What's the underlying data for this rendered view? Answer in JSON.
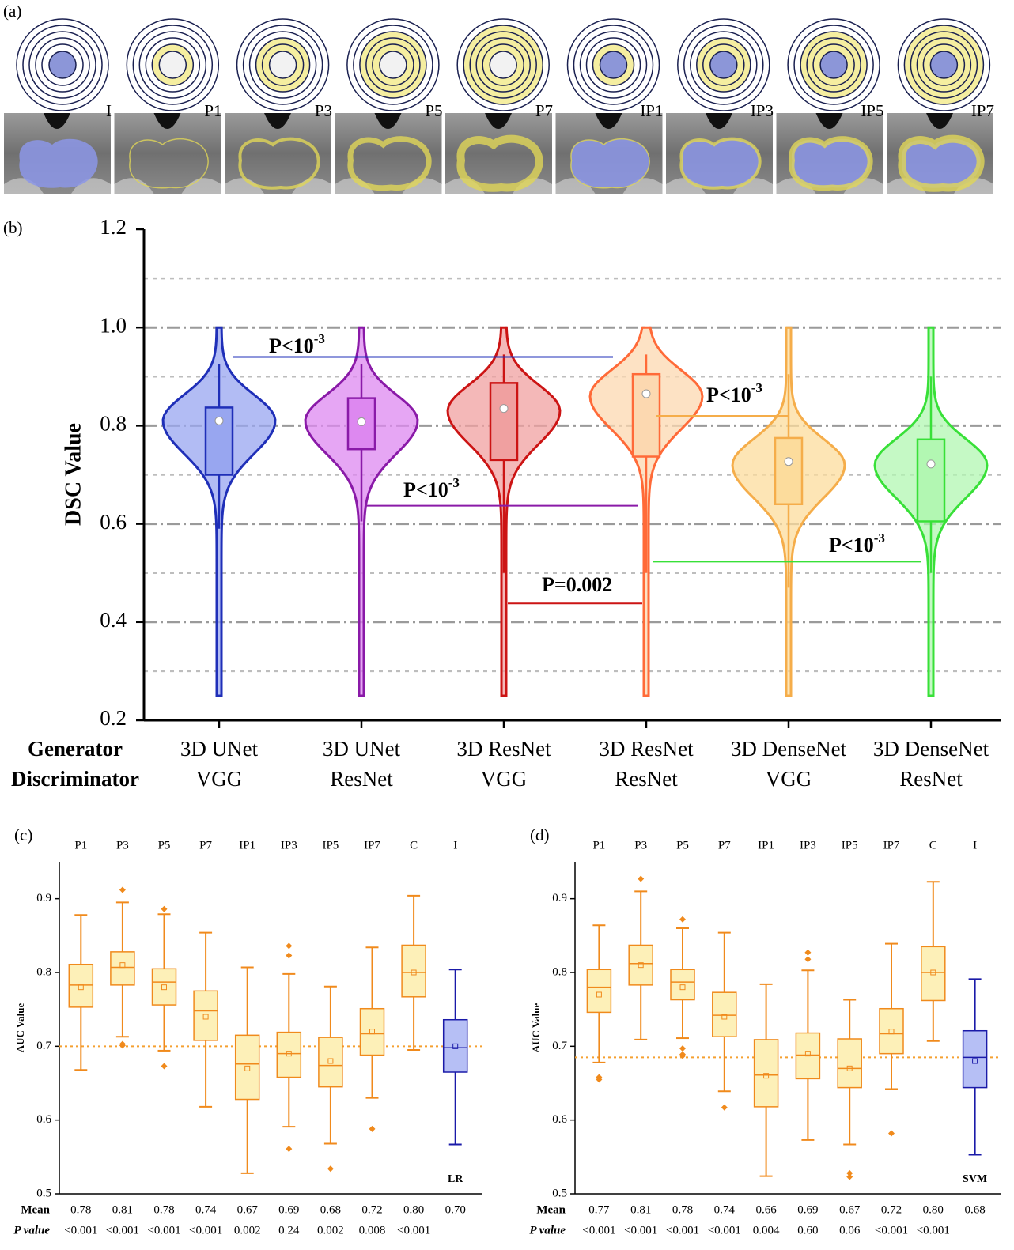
{
  "panel_a": {
    "label": "(a)",
    "items": [
      "I",
      "P1",
      "P3",
      "P5",
      "P7",
      "IP1",
      "IP3",
      "IP5",
      "IP7"
    ]
  },
  "chart_data": [
    {
      "type": "violin",
      "panel_label": "(b)",
      "y_label": "DSC Value",
      "row_labels": [
        "Generator",
        "Discriminator"
      ],
      "generators": [
        "3D UNet",
        "3D UNet",
        "3D ResNet",
        "3D ResNet",
        "3D DenseNet",
        "3D DenseNet"
      ],
      "discriminators": [
        "VGG",
        "ResNet",
        "VGG",
        "ResNet",
        "VGG",
        "ResNet"
      ],
      "ylim": [
        0.2,
        1.2
      ],
      "yticks": [
        0.2,
        0.4,
        0.6,
        0.8,
        {
          "value": 1.0,
          "label": "1.0"
        },
        1.2
      ],
      "minor_grid": [
        0.3,
        0.5,
        0.7,
        0.9,
        1.1
      ],
      "violins": [
        {
          "color": "#1f2fb8",
          "fill": "#98a6f0",
          "min": 0.25,
          "max": 1.0,
          "peak": 0.81,
          "whisker_low": 0.59,
          "q1": 0.7,
          "q3": 0.837,
          "whisker_high": 0.925,
          "mean": 0.81
        },
        {
          "color": "#8a1aa8",
          "fill": "#dd88f0",
          "min": 0.25,
          "max": 1.0,
          "peak": 0.81,
          "whisker_low": 0.605,
          "q1": 0.752,
          "q3": 0.856,
          "whisker_high": 0.925,
          "mean": 0.808
        },
        {
          "color": "#cc1414",
          "fill": "#f0a0a0",
          "min": 0.25,
          "max": 1.0,
          "peak": 0.83,
          "whisker_low": 0.5,
          "q1": 0.73,
          "q3": 0.887,
          "whisker_high": 0.945,
          "mean": 0.835
        },
        {
          "color": "#ff6a38",
          "fill": "#fcd8b0",
          "min": 0.25,
          "max": 1.0,
          "peak": 0.86,
          "whisker_low": 0.5,
          "q1": 0.737,
          "q3": 0.905,
          "whisker_high": 0.945,
          "mean": 0.865
        },
        {
          "color": "#f5ad4a",
          "fill": "#fcdc9c",
          "min": 0.25,
          "max": 1.0,
          "peak": 0.72,
          "whisker_low": 0.47,
          "q1": 0.64,
          "q3": 0.775,
          "whisker_high": 0.905,
          "mean": 0.727
        },
        {
          "color": "#38e038",
          "fill": "#b2f7b2",
          "min": 0.25,
          "max": 1.0,
          "peak": 0.72,
          "whisker_low": 0.5,
          "q1": 0.605,
          "q3": 0.772,
          "whisker_high": 0.9,
          "mean": 0.722
        }
      ],
      "annotations": [
        {
          "text": "P<10",
          "sup": "-3",
          "y": 0.94,
          "color": "#1f2fb8"
        },
        {
          "text": "P<10",
          "sup": "-3",
          "y": 0.637,
          "color": "#8a1aa8"
        },
        {
          "text": "P=0.002",
          "y": 0.438,
          "color": "#cc1414"
        },
        {
          "text": "P<10",
          "sup": "-3",
          "y": 0.82,
          "color": "#f5ad4a"
        },
        {
          "text": "P<10",
          "sup": "-3",
          "y": 0.523,
          "color": "#38e038"
        }
      ]
    },
    {
      "type": "box",
      "panel_label": "(c)",
      "y_label": "AUC Value",
      "model": "LR",
      "categories": [
        "P1",
        "P3",
        "P5",
        "P7",
        "IP1",
        "IP3",
        "IP5",
        "IP7",
        "C",
        "I"
      ],
      "ylim": [
        0.5,
        0.95
      ],
      "yticks": [
        0.5,
        0.6,
        0.7,
        0.8,
        0.9
      ],
      "reference": 0.7,
      "boxes": [
        {
          "color": "#f08a1c",
          "fill": "#fdf0b8",
          "whisker_low": 0.668,
          "q1": 0.753,
          "median": 0.783,
          "q3": 0.811,
          "whisker_high": 0.878,
          "outliers": []
        },
        {
          "color": "#f08a1c",
          "fill": "#fdf0b8",
          "whisker_low": 0.713,
          "q1": 0.783,
          "median": 0.807,
          "q3": 0.828,
          "whisker_high": 0.895,
          "outliers": [
            0.912,
            0.703,
            0.701
          ]
        },
        {
          "color": "#f08a1c",
          "fill": "#fdf0b8",
          "whisker_low": 0.694,
          "q1": 0.756,
          "median": 0.787,
          "q3": 0.805,
          "whisker_high": 0.879,
          "outliers": [
            0.886,
            0.673
          ]
        },
        {
          "color": "#f08a1c",
          "fill": "#fdf0b8",
          "whisker_low": 0.618,
          "q1": 0.708,
          "median": 0.748,
          "q3": 0.775,
          "whisker_high": 0.854,
          "outliers": []
        },
        {
          "color": "#f08a1c",
          "fill": "#fdf0b8",
          "whisker_low": 0.528,
          "q1": 0.628,
          "median": 0.676,
          "q3": 0.715,
          "whisker_high": 0.807,
          "outliers": []
        },
        {
          "color": "#f08a1c",
          "fill": "#fdf0b8",
          "whisker_low": 0.591,
          "q1": 0.658,
          "median": 0.69,
          "q3": 0.719,
          "whisker_high": 0.798,
          "outliers": [
            0.836,
            0.823,
            0.561
          ]
        },
        {
          "color": "#f08a1c",
          "fill": "#fdf0b8",
          "whisker_low": 0.568,
          "q1": 0.645,
          "median": 0.674,
          "q3": 0.712,
          "whisker_high": 0.781,
          "outliers": [
            0.534
          ]
        },
        {
          "color": "#f08a1c",
          "fill": "#fdf0b8",
          "whisker_low": 0.63,
          "q1": 0.688,
          "median": 0.717,
          "q3": 0.751,
          "whisker_high": 0.834,
          "outliers": [
            0.588
          ]
        },
        {
          "color": "#f08a1c",
          "fill": "#fdf0b8",
          "whisker_low": 0.695,
          "q1": 0.767,
          "median": 0.8,
          "q3": 0.837,
          "whisker_high": 0.904,
          "outliers": []
        },
        {
          "color": "#1a1aa8",
          "fill": "#b6bff5",
          "whisker_low": 0.567,
          "q1": 0.665,
          "median": 0.698,
          "q3": 0.736,
          "whisker_high": 0.804,
          "outliers": []
        }
      ],
      "mean_row_label": "Mean",
      "means": [
        0.78,
        0.81,
        0.78,
        0.74,
        0.67,
        0.69,
        0.68,
        0.72,
        0.8,
        0.7
      ],
      "mean_labels": [
        "0.78",
        "0.81",
        "0.78",
        "0.74",
        "0.67",
        "0.69",
        "0.68",
        "0.72",
        "0.80",
        "0.70"
      ],
      "p_row_label": "P value",
      "p_values": [
        "<0.001",
        "<0.001",
        "<0.001",
        "<0.001",
        "0.002",
        "0.24",
        "0.002",
        "0.008",
        "<0.001",
        null
      ]
    },
    {
      "type": "box",
      "panel_label": "(d)",
      "y_label": "AUC Value",
      "model": "SVM",
      "categories": [
        "P1",
        "P3",
        "P5",
        "P7",
        "IP1",
        "IP3",
        "IP5",
        "IP7",
        "C",
        "I"
      ],
      "ylim": [
        0.5,
        0.95
      ],
      "yticks": [
        0.5,
        0.6,
        0.7,
        0.8,
        0.9
      ],
      "reference": 0.685,
      "boxes": [
        {
          "color": "#f08a1c",
          "fill": "#fdf0b8",
          "whisker_low": 0.678,
          "q1": 0.746,
          "median": 0.78,
          "q3": 0.804,
          "whisker_high": 0.864,
          "outliers": [
            0.658,
            0.655
          ]
        },
        {
          "color": "#f08a1c",
          "fill": "#fdf0b8",
          "whisker_low": 0.709,
          "q1": 0.783,
          "median": 0.812,
          "q3": 0.837,
          "whisker_high": 0.91,
          "outliers": [
            0.927
          ]
        },
        {
          "color": "#f08a1c",
          "fill": "#fdf0b8",
          "whisker_low": 0.711,
          "q1": 0.763,
          "median": 0.787,
          "q3": 0.804,
          "whisker_high": 0.86,
          "outliers": [
            0.872,
            0.697,
            0.689,
            0.687
          ]
        },
        {
          "color": "#f08a1c",
          "fill": "#fdf0b8",
          "whisker_low": 0.639,
          "q1": 0.713,
          "median": 0.742,
          "q3": 0.773,
          "whisker_high": 0.854,
          "outliers": [
            0.617
          ]
        },
        {
          "color": "#f08a1c",
          "fill": "#fdf0b8",
          "whisker_low": 0.524,
          "q1": 0.618,
          "median": 0.661,
          "q3": 0.709,
          "whisker_high": 0.784,
          "outliers": []
        },
        {
          "color": "#f08a1c",
          "fill": "#fdf0b8",
          "whisker_low": 0.573,
          "q1": 0.656,
          "median": 0.688,
          "q3": 0.718,
          "whisker_high": 0.803,
          "outliers": [
            0.827,
            0.818
          ]
        },
        {
          "color": "#f08a1c",
          "fill": "#fdf0b8",
          "whisker_low": 0.567,
          "q1": 0.644,
          "median": 0.67,
          "q3": 0.71,
          "whisker_high": 0.763,
          "outliers": [
            0.528,
            0.523
          ]
        },
        {
          "color": "#f08a1c",
          "fill": "#fdf0b8",
          "whisker_low": 0.642,
          "q1": 0.69,
          "median": 0.717,
          "q3": 0.751,
          "whisker_high": 0.839,
          "outliers": [
            0.582
          ]
        },
        {
          "color": "#f08a1c",
          "fill": "#fdf0b8",
          "whisker_low": 0.707,
          "q1": 0.762,
          "median": 0.8,
          "q3": 0.835,
          "whisker_high": 0.923,
          "outliers": []
        },
        {
          "color": "#1a1aa8",
          "fill": "#b6bff5",
          "whisker_low": 0.553,
          "q1": 0.644,
          "median": 0.685,
          "q3": 0.721,
          "whisker_high": 0.791,
          "outliers": []
        }
      ],
      "mean_row_label": "Mean",
      "means": [
        0.77,
        0.81,
        0.78,
        0.74,
        0.66,
        0.69,
        0.67,
        0.72,
        0.8,
        0.68
      ],
      "mean_labels": [
        "0.77",
        "0.81",
        "0.78",
        "0.74",
        "0.66",
        "0.69",
        "0.67",
        "0.72",
        "0.80",
        "0.68"
      ],
      "p_row_label": "P value",
      "p_values": [
        "<0.001",
        "<0.001",
        "<0.001",
        "<0.001",
        "0.004",
        "0.60",
        "0.06",
        "<0.001",
        "<0.001",
        null
      ]
    }
  ]
}
